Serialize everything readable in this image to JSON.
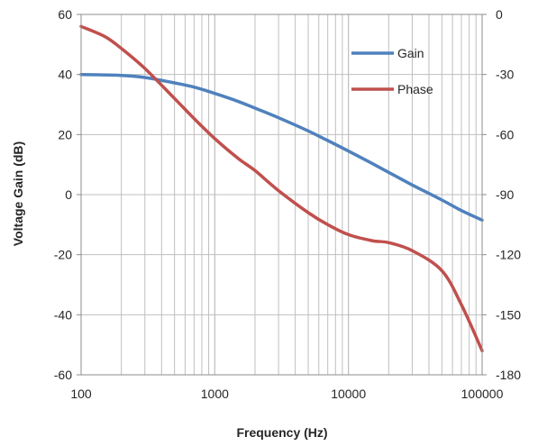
{
  "chart_data": {
    "type": "line",
    "xlabel": "Frequency (Hz)",
    "ylabel": "Voltage Gain (dB)",
    "x_scale": "log",
    "xlim": [
      100,
      100000
    ],
    "ylim": [
      -60,
      60
    ],
    "y2lim": [
      -180,
      0
    ],
    "x_ticks": [
      100,
      1000,
      10000,
      100000
    ],
    "x_tick_labels": [
      "100",
      "1000",
      "10000",
      "100000"
    ],
    "y_ticks": [
      60,
      40,
      20,
      0,
      -20,
      -40,
      -60
    ],
    "y_tick_labels": [
      "60",
      "40",
      "20",
      "0",
      "-20",
      "-40",
      "-60"
    ],
    "y2_ticks": [
      0,
      -30,
      -60,
      -90,
      -120,
      -150,
      -180
    ],
    "y2_tick_labels": [
      "0",
      "-30",
      "-60",
      "-90",
      "-120",
      "-150",
      "-180"
    ],
    "grid": true,
    "legend_position": "top-right",
    "series": [
      {
        "name": "Gain",
        "axis": "left",
        "color": "#4F81BD",
        "x": [
          100,
          200,
          300,
          500,
          700,
          1000,
          1500,
          2000,
          3000,
          5000,
          7000,
          10000,
          15000,
          20000,
          30000,
          50000,
          70000,
          100000
        ],
        "y": [
          40,
          39.7,
          39,
          37.2,
          35.8,
          33.7,
          31,
          28.8,
          25.6,
          21.2,
          18,
          14.5,
          10.4,
          7.4,
          3.2,
          -1.8,
          -5.3,
          -8.5
        ]
      },
      {
        "name": "Phase",
        "axis": "right",
        "color": "#C0504D",
        "x": [
          100,
          150,
          200,
          300,
          500,
          700,
          1000,
          1500,
          2000,
          3000,
          5000,
          7000,
          10000,
          15000,
          20000,
          30000,
          50000,
          70000,
          100000
        ],
        "y": [
          -6,
          -11,
          -17,
          -27,
          -42,
          -52,
          -62,
          -72,
          -78,
          -88,
          -99,
          -105,
          -110,
          -113,
          -114,
          -118,
          -128,
          -145,
          -168
        ]
      }
    ]
  }
}
